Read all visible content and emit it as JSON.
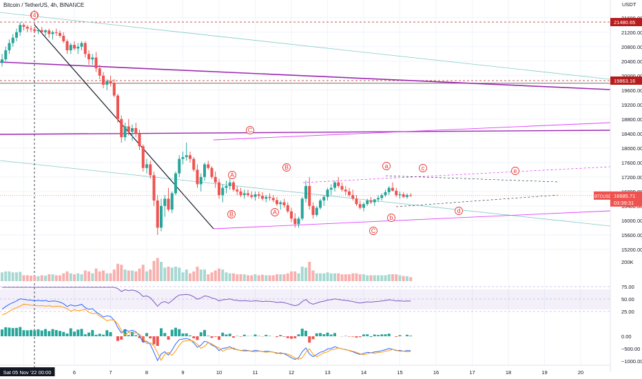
{
  "header": {
    "symbol": "Bitcoin / TetherUS",
    "interval": "4h",
    "exchange": "BINANCE",
    "sep1": ", ",
    "sep2": ", "
  },
  "price_axis": {
    "currency": "USDT"
  },
  "colors": {
    "up": "#26a69a",
    "down": "#ef5350",
    "purple": "#9c27b0",
    "pink": "#e040fb",
    "teal": "#80cbc4",
    "wave": "#e53935",
    "rsi": "#7e57c2",
    "macd": "#2962ff",
    "signal": "#ff9800"
  },
  "chart_data": {
    "type": "candlestick",
    "panels": [
      "price",
      "volume",
      "rsi",
      "macd"
    ],
    "x_ticks": [
      {
        "label": "Sat 05 Nov '22  00:00",
        "slot": 6
      },
      {
        "label": "6",
        "slot": 20
      },
      {
        "label": "7",
        "slot": 30
      },
      {
        "label": "8",
        "slot": 40
      },
      {
        "label": "9",
        "slot": 50
      },
      {
        "label": "10",
        "slot": 60
      },
      {
        "label": "11",
        "slot": 70
      },
      {
        "label": "12",
        "slot": 80
      },
      {
        "label": "13",
        "slot": 90
      },
      {
        "label": "14",
        "slot": 100
      },
      {
        "label": "15",
        "slot": 110
      },
      {
        "label": "16",
        "slot": 120
      },
      {
        "label": "17",
        "slot": 130
      },
      {
        "label": "18",
        "slot": 140
      },
      {
        "label": "19",
        "slot": 150
      },
      {
        "label": "20",
        "slot": 160
      }
    ],
    "price_ticks": [
      21600,
      21200,
      20800,
      20400,
      20000,
      19600,
      19200,
      18800,
      18400,
      18000,
      17600,
      17200,
      16800,
      16400,
      16000,
      15600,
      15200
    ],
    "price_tick_labels": [
      "21600.00",
      "21200.00",
      "20800.00",
      "20400.00",
      "20000.00",
      "19600.00",
      "19200.00",
      "18800.00",
      "18400.00",
      "18000.00",
      "17600.00",
      "17200.00",
      "16800.00",
      "16400.00",
      "16000.00",
      "15600.00",
      "15200.00"
    ],
    "price_range": [
      14950,
      21900
    ],
    "price_labels": [
      {
        "text": "21480.65",
        "value": 21480.65
      },
      {
        "text": "19863.16",
        "value": 19863.16
      }
    ],
    "last_price_label": {
      "symbol": "BTCUSDT",
      "price": "16685.71",
      "countdown": "03:39:31",
      "value": 16685.71
    },
    "volume_tick": "200K",
    "rsi_ticks": [
      75.0,
      50.0,
      25.0
    ],
    "rsi_tick_labels": [
      "75.00",
      "50.00",
      "25.00"
    ],
    "rsi_band": [
      30,
      70
    ],
    "macd_ticks": [
      0,
      -500,
      -1000
    ],
    "macd_tick_labels": [
      "0.00",
      "−500.00",
      "−1000.00"
    ],
    "wave_labels": [
      "(4)",
      "C",
      "A",
      "B",
      "B",
      "A",
      "a",
      "b",
      "c",
      "d",
      "e",
      "C"
    ],
    "candles": [
      [
        20350,
        20600,
        20250,
        20450
      ],
      [
        20450,
        20800,
        20400,
        20700
      ],
      [
        20700,
        21000,
        20600,
        20900
      ],
      [
        20900,
        21150,
        20800,
        21050
      ],
      [
        21050,
        21300,
        20950,
        21200
      ],
      [
        21200,
        21480,
        21100,
        21400
      ],
      [
        21400,
        21450,
        21250,
        21350
      ],
      [
        21350,
        21400,
        21200,
        21300
      ],
      [
        21300,
        21380,
        21200,
        21280
      ],
      [
        21280,
        21350,
        21180,
        21230
      ],
      [
        21230,
        21300,
        21150,
        21260
      ],
      [
        21260,
        21350,
        21150,
        21200
      ],
      [
        21200,
        21280,
        21100,
        21250
      ],
      [
        21250,
        21300,
        21050,
        21150
      ],
      [
        21150,
        21250,
        21000,
        21200
      ],
      [
        21200,
        21300,
        21100,
        21180
      ],
      [
        21180,
        21250,
        21050,
        21100
      ],
      [
        21100,
        21200,
        20900,
        20950
      ],
      [
        20950,
        21000,
        20600,
        20700
      ],
      [
        20700,
        20900,
        20600,
        20850
      ],
      [
        20850,
        20950,
        20700,
        20750
      ],
      [
        20750,
        20900,
        20600,
        20800
      ],
      [
        20800,
        20950,
        20700,
        20900
      ],
      [
        20900,
        20950,
        20500,
        20600
      ],
      [
        20600,
        20700,
        20300,
        20450
      ],
      [
        20450,
        20600,
        20300,
        20500
      ],
      [
        20500,
        20650,
        20100,
        20200
      ],
      [
        20200,
        20300,
        19900,
        20000
      ],
      [
        20000,
        20100,
        19650,
        19750
      ],
      [
        19750,
        19900,
        19600,
        19850
      ],
      [
        19850,
        20000,
        19700,
        19800
      ],
      [
        19800,
        19900,
        19400,
        19450
      ],
      [
        19450,
        19500,
        18700,
        18800
      ],
      [
        18800,
        18900,
        18150,
        18300
      ],
      [
        18300,
        18700,
        18200,
        18600
      ],
      [
        18600,
        18800,
        18350,
        18450
      ],
      [
        18450,
        18650,
        18200,
        18550
      ],
      [
        18550,
        18700,
        18300,
        18400
      ],
      [
        18400,
        18500,
        17950,
        18050
      ],
      [
        18050,
        18100,
        17350,
        17450
      ],
      [
        17450,
        17700,
        17300,
        17550
      ],
      [
        17550,
        17650,
        17150,
        17250
      ],
      [
        17250,
        17350,
        16400,
        16550
      ],
      [
        16550,
        16700,
        15600,
        15800
      ],
      [
        15800,
        16600,
        15700,
        16400
      ],
      [
        16400,
        16700,
        16100,
        16600
      ],
      [
        16600,
        16900,
        16250,
        16300
      ],
      [
        16300,
        16800,
        16200,
        16750
      ],
      [
        16750,
        17350,
        16700,
        17300
      ],
      [
        17300,
        17800,
        17200,
        17700
      ],
      [
        17700,
        17900,
        17550,
        17750
      ],
      [
        17750,
        18150,
        17650,
        17800
      ],
      [
        17800,
        17900,
        17600,
        17700
      ],
      [
        17700,
        17750,
        17350,
        17400
      ],
      [
        17400,
        17550,
        16900,
        17000
      ],
      [
        17000,
        17300,
        16800,
        17200
      ],
      [
        17200,
        17600,
        17100,
        17550
      ],
      [
        17550,
        17650,
        17400,
        17450
      ],
      [
        17450,
        17500,
        17150,
        17200
      ],
      [
        17200,
        17350,
        16900,
        17050
      ],
      [
        17050,
        17150,
        16600,
        16700
      ],
      [
        16700,
        17000,
        16500,
        16900
      ],
      [
        16900,
        17100,
        16750,
        16950
      ],
      [
        16950,
        17150,
        16850,
        17050
      ],
      [
        17050,
        17100,
        16800,
        16850
      ],
      [
        16850,
        16950,
        16700,
        16800
      ],
      [
        16800,
        16900,
        16650,
        16700
      ],
      [
        16700,
        16850,
        16600,
        16750
      ],
      [
        16750,
        16850,
        16650,
        16700
      ],
      [
        16700,
        16800,
        16600,
        16650
      ],
      [
        16650,
        16800,
        16550,
        16720
      ],
      [
        16720,
        16800,
        16600,
        16680
      ],
      [
        16680,
        16780,
        16550,
        16600
      ],
      [
        16600,
        16700,
        16500,
        16650
      ],
      [
        16650,
        16750,
        16550,
        16620
      ],
      [
        16620,
        16700,
        16500,
        16560
      ],
      [
        16560,
        16650,
        16400,
        16450
      ],
      [
        16450,
        16550,
        16300,
        16500
      ],
      [
        16500,
        16600,
        16350,
        16420
      ],
      [
        16420,
        16500,
        16200,
        16250
      ],
      [
        16250,
        16350,
        15950,
        16050
      ],
      [
        16050,
        16200,
        15800,
        15900
      ],
      [
        15900,
        16100,
        15800,
        16050
      ],
      [
        16050,
        16650,
        16000,
        16600
      ],
      [
        16600,
        17100,
        16500,
        16950
      ],
      [
        16950,
        17200,
        16300,
        16400
      ],
      [
        16400,
        16500,
        16050,
        16150
      ],
      [
        16150,
        16400,
        16100,
        16350
      ],
      [
        16350,
        16600,
        16300,
        16550
      ],
      [
        16550,
        16700,
        16400,
        16650
      ],
      [
        16650,
        16900,
        16550,
        16850
      ],
      [
        16850,
        17000,
        16700,
        16900
      ],
      [
        16900,
        17100,
        16800,
        17050
      ],
      [
        17050,
        17200,
        16900,
        16950
      ],
      [
        16950,
        17050,
        16800,
        16850
      ],
      [
        16850,
        16950,
        16700,
        16800
      ],
      [
        16800,
        16900,
        16650,
        16700
      ],
      [
        16700,
        16850,
        16550,
        16600
      ],
      [
        16600,
        16700,
        16400,
        16450
      ],
      [
        16450,
        16550,
        16300,
        16350
      ],
      [
        16350,
        16500,
        16250,
        16450
      ],
      [
        16450,
        16600,
        16400,
        16550
      ],
      [
        16550,
        16650,
        16450,
        16500
      ],
      [
        16500,
        16600,
        16400,
        16580
      ],
      [
        16580,
        16700,
        16500,
        16620
      ],
      [
        16620,
        16750,
        16550,
        16700
      ],
      [
        16700,
        16850,
        16650,
        16780
      ],
      [
        16780,
        16950,
        16700,
        16900
      ],
      [
        16900,
        17050,
        16800,
        16820
      ],
      [
        16820,
        16900,
        16650,
        16700
      ],
      [
        16700,
        16800,
        16600,
        16720
      ],
      [
        16720,
        16780,
        16620,
        16650
      ],
      [
        16650,
        16750,
        16600,
        16700
      ],
      [
        16700,
        16750,
        16650,
        16685
      ]
    ]
  }
}
